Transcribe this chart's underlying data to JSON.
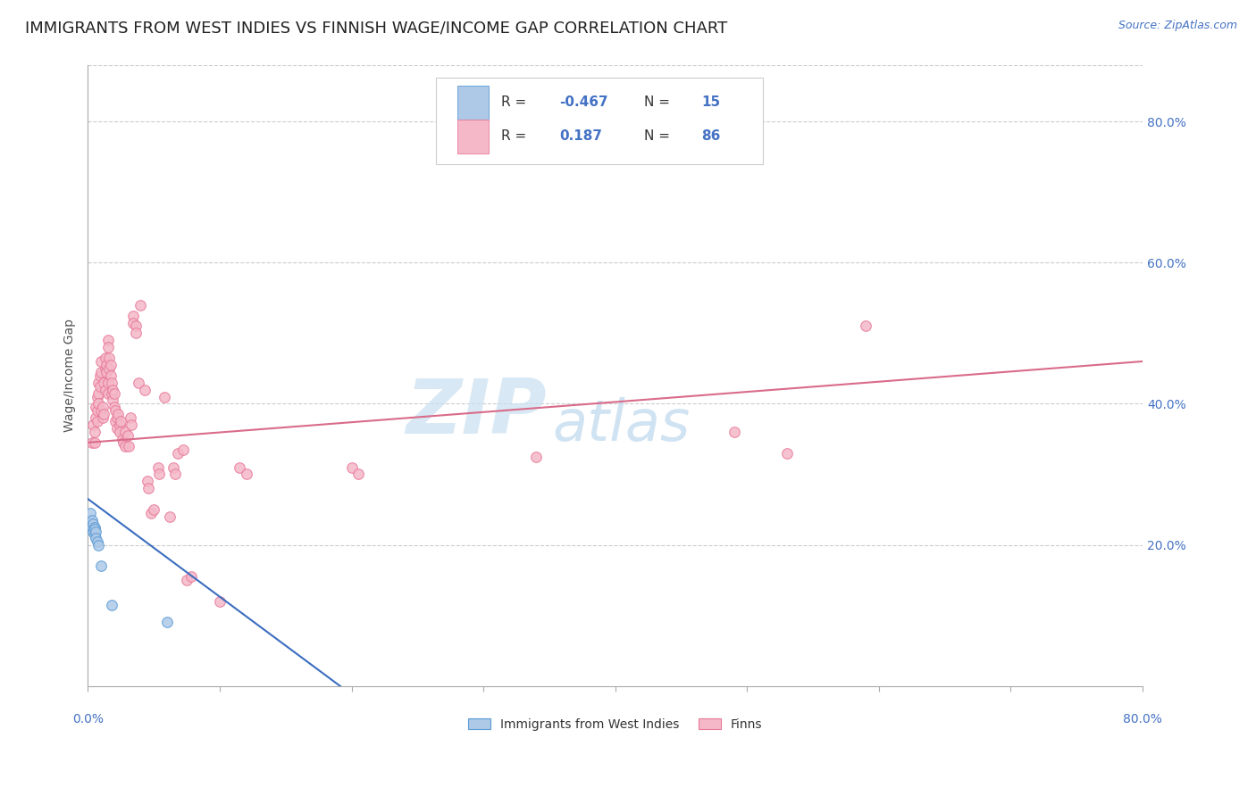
{
  "title": "IMMIGRANTS FROM WEST INDIES VS FINNISH WAGE/INCOME GAP CORRELATION CHART",
  "source": "Source: ZipAtlas.com",
  "ylabel": "Wage/Income Gap",
  "xlim": [
    0.0,
    0.8
  ],
  "ylim": [
    0.0,
    0.88
  ],
  "xtick_vals": [
    0.0,
    0.1,
    0.2,
    0.3,
    0.4,
    0.5,
    0.6,
    0.7,
    0.8
  ],
  "ytick_vals": [
    0.2,
    0.4,
    0.6,
    0.8
  ],
  "blue_dots": [
    [
      0.002,
      0.245
    ],
    [
      0.003,
      0.235
    ],
    [
      0.003,
      0.225
    ],
    [
      0.004,
      0.23
    ],
    [
      0.004,
      0.218
    ],
    [
      0.005,
      0.225
    ],
    [
      0.005,
      0.215
    ],
    [
      0.005,
      0.222
    ],
    [
      0.006,
      0.218
    ],
    [
      0.006,
      0.21
    ],
    [
      0.007,
      0.205
    ],
    [
      0.008,
      0.2
    ],
    [
      0.01,
      0.17
    ],
    [
      0.018,
      0.115
    ],
    [
      0.06,
      0.09
    ]
  ],
  "pink_dots": [
    [
      0.003,
      0.345
    ],
    [
      0.004,
      0.37
    ],
    [
      0.005,
      0.345
    ],
    [
      0.005,
      0.36
    ],
    [
      0.006,
      0.38
    ],
    [
      0.006,
      0.395
    ],
    [
      0.007,
      0.39
    ],
    [
      0.007,
      0.375
    ],
    [
      0.007,
      0.41
    ],
    [
      0.008,
      0.415
    ],
    [
      0.008,
      0.4
    ],
    [
      0.008,
      0.43
    ],
    [
      0.009,
      0.44
    ],
    [
      0.009,
      0.425
    ],
    [
      0.01,
      0.445
    ],
    [
      0.01,
      0.46
    ],
    [
      0.01,
      0.39
    ],
    [
      0.011,
      0.38
    ],
    [
      0.011,
      0.395
    ],
    [
      0.012,
      0.385
    ],
    [
      0.012,
      0.43
    ],
    [
      0.013,
      0.42
    ],
    [
      0.013,
      0.45
    ],
    [
      0.013,
      0.465
    ],
    [
      0.014,
      0.455
    ],
    [
      0.014,
      0.445
    ],
    [
      0.015,
      0.415
    ],
    [
      0.015,
      0.43
    ],
    [
      0.015,
      0.49
    ],
    [
      0.015,
      0.48
    ],
    [
      0.016,
      0.465
    ],
    [
      0.016,
      0.45
    ],
    [
      0.017,
      0.44
    ],
    [
      0.017,
      0.455
    ],
    [
      0.018,
      0.43
    ],
    [
      0.018,
      0.415
    ],
    [
      0.019,
      0.42
    ],
    [
      0.019,
      0.405
    ],
    [
      0.02,
      0.415
    ],
    [
      0.02,
      0.395
    ],
    [
      0.021,
      0.39
    ],
    [
      0.021,
      0.375
    ],
    [
      0.022,
      0.38
    ],
    [
      0.022,
      0.365
    ],
    [
      0.023,
      0.385
    ],
    [
      0.024,
      0.37
    ],
    [
      0.024,
      0.36
    ],
    [
      0.025,
      0.375
    ],
    [
      0.026,
      0.35
    ],
    [
      0.027,
      0.345
    ],
    [
      0.028,
      0.36
    ],
    [
      0.028,
      0.34
    ],
    [
      0.03,
      0.355
    ],
    [
      0.031,
      0.34
    ],
    [
      0.032,
      0.38
    ],
    [
      0.033,
      0.37
    ],
    [
      0.034,
      0.525
    ],
    [
      0.034,
      0.515
    ],
    [
      0.036,
      0.51
    ],
    [
      0.036,
      0.5
    ],
    [
      0.038,
      0.43
    ],
    [
      0.04,
      0.54
    ],
    [
      0.043,
      0.42
    ],
    [
      0.045,
      0.29
    ],
    [
      0.046,
      0.28
    ],
    [
      0.048,
      0.245
    ],
    [
      0.05,
      0.25
    ],
    [
      0.053,
      0.31
    ],
    [
      0.054,
      0.3
    ],
    [
      0.058,
      0.41
    ],
    [
      0.062,
      0.24
    ],
    [
      0.065,
      0.31
    ],
    [
      0.066,
      0.3
    ],
    [
      0.068,
      0.33
    ],
    [
      0.072,
      0.335
    ],
    [
      0.075,
      0.15
    ],
    [
      0.078,
      0.155
    ],
    [
      0.1,
      0.12
    ],
    [
      0.115,
      0.31
    ],
    [
      0.12,
      0.3
    ],
    [
      0.2,
      0.31
    ],
    [
      0.205,
      0.3
    ],
    [
      0.34,
      0.325
    ],
    [
      0.49,
      0.36
    ],
    [
      0.53,
      0.33
    ],
    [
      0.59,
      0.51
    ]
  ],
  "blue_line_x": [
    0.0,
    0.22
  ],
  "blue_line_y": [
    0.265,
    -0.04
  ],
  "pink_line_x": [
    0.0,
    0.8
  ],
  "pink_line_y": [
    0.345,
    0.46
  ],
  "dot_size": 70,
  "blue_dot_color": "#aec9e8",
  "blue_dot_edge": "#5b9bd5",
  "pink_dot_color": "#f4b8c8",
  "pink_dot_edge": "#e87a99",
  "blue_line_color": "#3b6dbf",
  "pink_line_color": "#d96b8a",
  "watermark_zip": "ZIP",
  "watermark_atlas": "atlas",
  "watermark_color": "#c8dff0",
  "background_color": "#ffffff",
  "grid_color": "#cccccc",
  "title_fontsize": 13,
  "source_fontsize": 9,
  "axis_label_fontsize": 10,
  "tick_fontsize": 10,
  "right_tick_color": "#4472c4",
  "legend_r1_R": "-0.467",
  "legend_r1_N": "15",
  "legend_r2_R": "0.187",
  "legend_r2_N": "86"
}
